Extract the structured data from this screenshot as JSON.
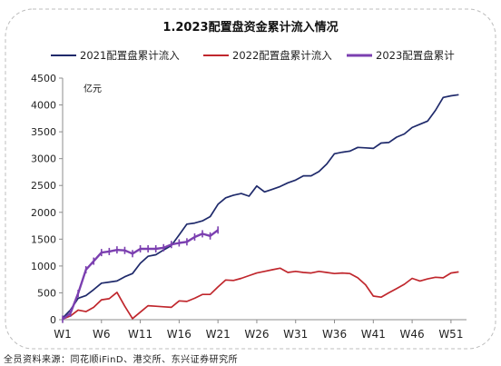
{
  "chart_data": {
    "type": "line",
    "title": "1.2023配置盘资金累计流入情况",
    "unit_label": "亿元",
    "xlabel": "",
    "ylabel": "",
    "ylim": [
      0,
      4500
    ],
    "yticks": [
      0,
      500,
      1000,
      1500,
      2000,
      2500,
      3000,
      3500,
      4000,
      4500
    ],
    "xlim": [
      1,
      53
    ],
    "xticks": [
      {
        "week": 1,
        "label": "W1"
      },
      {
        "week": 6,
        "label": "W6"
      },
      {
        "week": 11,
        "label": "W11"
      },
      {
        "week": 16,
        "label": "W16"
      },
      {
        "week": 21,
        "label": "W21"
      },
      {
        "week": 26,
        "label": "W26"
      },
      {
        "week": 31,
        "label": "W31"
      },
      {
        "week": 36,
        "label": "W36"
      },
      {
        "week": 41,
        "label": "W41"
      },
      {
        "week": 46,
        "label": "W46"
      },
      {
        "week": 51,
        "label": "W51"
      }
    ],
    "grid": false,
    "legend_position": "top",
    "series": [
      {
        "name": "2021配置盘累计流入",
        "color": "#1f2a6b",
        "markers": false,
        "x": [
          1,
          2,
          3,
          4,
          5,
          6,
          7,
          8,
          9,
          10,
          11,
          12,
          13,
          14,
          15,
          16,
          17,
          18,
          19,
          20,
          21,
          22,
          23,
          24,
          25,
          26,
          27,
          28,
          29,
          30,
          31,
          32,
          33,
          34,
          35,
          36,
          37,
          38,
          39,
          40,
          41,
          42,
          43,
          44,
          45,
          46,
          47,
          48,
          49,
          50,
          51,
          52
        ],
        "values": [
          30,
          180,
          400,
          450,
          560,
          680,
          700,
          720,
          800,
          860,
          1050,
          1180,
          1210,
          1300,
          1380,
          1580,
          1780,
          1800,
          1840,
          1920,
          2150,
          2270,
          2320,
          2350,
          2300,
          2490,
          2380,
          2430,
          2480,
          2550,
          2600,
          2680,
          2680,
          2760,
          2900,
          3090,
          3120,
          3140,
          3210,
          3200,
          3190,
          3290,
          3300,
          3400,
          3460,
          3580,
          3640,
          3700,
          3900,
          4140,
          4170,
          4190
        ]
      },
      {
        "name": "2022配置盘累计流入",
        "color": "#c0272d",
        "markers": false,
        "x": [
          1,
          2,
          3,
          4,
          5,
          6,
          7,
          8,
          9,
          10,
          11,
          12,
          13,
          14,
          15,
          16,
          17,
          18,
          19,
          20,
          21,
          22,
          23,
          24,
          25,
          26,
          27,
          28,
          29,
          30,
          31,
          32,
          33,
          34,
          35,
          36,
          37,
          38,
          39,
          40,
          41,
          42,
          43,
          44,
          45,
          46,
          47,
          48,
          49,
          50,
          51,
          52
        ],
        "values": [
          10,
          70,
          180,
          150,
          230,
          370,
          390,
          510,
          250,
          20,
          140,
          260,
          250,
          240,
          230,
          350,
          340,
          400,
          470,
          470,
          610,
          740,
          730,
          770,
          820,
          870,
          900,
          930,
          960,
          880,
          900,
          880,
          870,
          900,
          880,
          860,
          870,
          860,
          780,
          650,
          440,
          420,
          500,
          580,
          660,
          770,
          720,
          760,
          790,
          780,
          870,
          890
        ]
      },
      {
        "name": "2023配置盘累计",
        "color": "#7b3fb0",
        "markers": true,
        "x": [
          1,
          2,
          3,
          4,
          5,
          6,
          7,
          8,
          9,
          10,
          11,
          12,
          13,
          14,
          15,
          16,
          17,
          18,
          19,
          20,
          21
        ],
        "values": [
          10,
          120,
          490,
          930,
          1090,
          1250,
          1270,
          1300,
          1290,
          1230,
          1320,
          1320,
          1320,
          1340,
          1400,
          1430,
          1450,
          1540,
          1600,
          1560,
          1670
        ]
      }
    ]
  },
  "source_note": "全员资料来源：同花顺iFinD、港交所、东兴证券研究所"
}
